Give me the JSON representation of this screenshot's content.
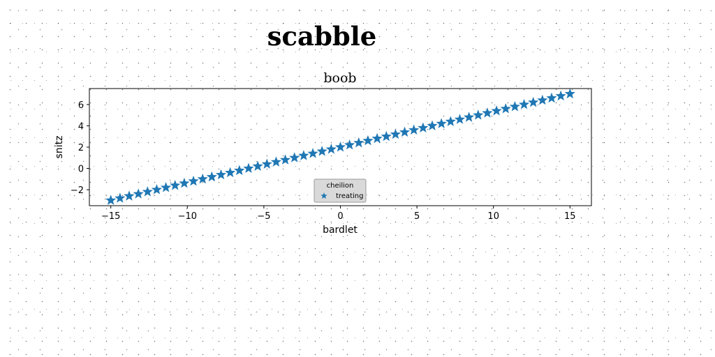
{
  "figure": {
    "suptitle": "scabble"
  },
  "chart_data": {
    "type": "scatter",
    "title": "boob",
    "xlabel": "bardlet",
    "ylabel": "snitz",
    "xlim": [
      -16.4,
      16.4
    ],
    "ylim": [
      -3.5,
      7.5
    ],
    "xticks": [
      -15,
      -10,
      -5,
      0,
      5,
      10,
      15
    ],
    "yticks": [
      -2,
      0,
      2,
      4,
      6
    ],
    "xtick_labels": [
      "−15",
      "−10",
      "−5",
      "0",
      "5",
      "10",
      "15"
    ],
    "ytick_labels": [
      "−2",
      "0",
      "2",
      "4",
      "6"
    ],
    "grid": false,
    "legend": {
      "title": "cheilion",
      "placement": "lower-center"
    },
    "series": [
      {
        "name": "treating",
        "marker": "star",
        "color": "#1f77b4",
        "x": [
          -15.0,
          -14.4,
          -13.8,
          -13.2,
          -12.6,
          -12.0,
          -11.4,
          -10.8,
          -10.2,
          -9.6,
          -9.0,
          -8.4,
          -7.8,
          -7.2,
          -6.6,
          -6.0,
          -5.4,
          -4.8,
          -4.2,
          -3.6,
          -3.0,
          -2.4,
          -1.8,
          -1.2,
          -0.6,
          0.0,
          0.6,
          1.2,
          1.8,
          2.4,
          3.0,
          3.6,
          4.2,
          4.8,
          5.4,
          6.0,
          6.6,
          7.2,
          7.8,
          8.4,
          9.0,
          9.6,
          10.2,
          10.8,
          11.4,
          12.0,
          12.6,
          13.2,
          13.8,
          14.4,
          15.0
        ],
        "y": [
          -3.0,
          -2.8,
          -2.6,
          -2.4,
          -2.2,
          -2.0,
          -1.8,
          -1.6,
          -1.4,
          -1.2,
          -1.0,
          -0.8,
          -0.6,
          -0.4,
          -0.2,
          0.0,
          0.2,
          0.4,
          0.6,
          0.8,
          1.0,
          1.2,
          1.4,
          1.6,
          1.8,
          2.0,
          2.2,
          2.4,
          2.6,
          2.8,
          3.0,
          3.2,
          3.4,
          3.6,
          3.8,
          4.0,
          4.2,
          4.4,
          4.6,
          4.8,
          5.0,
          5.2,
          5.4,
          5.6,
          5.8,
          6.0,
          6.2,
          6.4,
          6.6,
          6.8,
          7.0
        ]
      }
    ]
  }
}
